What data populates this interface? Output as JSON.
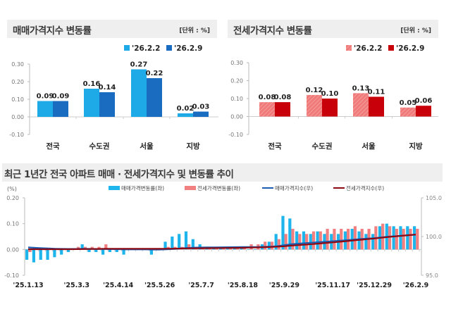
{
  "chart_data": [
    {
      "type": "bar",
      "title": "매매가격지수 변동률",
      "unit": "[단위 : %]",
      "categories": [
        "전국",
        "수도권",
        "서울",
        "지방"
      ],
      "series": [
        {
          "name": "'26.2.2",
          "values": [
            0.09,
            0.16,
            0.27,
            0.02
          ],
          "color": "#1eaae6"
        },
        {
          "name": "'26.2.9",
          "values": [
            0.09,
            0.14,
            0.22,
            0.03
          ],
          "color": "#1a6cc0"
        }
      ],
      "ylim": [
        -0.1,
        0.3
      ],
      "yticks": [
        "0.30",
        "0.20",
        "0.10",
        "0.00",
        "-0.10"
      ],
      "legend": "top-right",
      "data_labels": true
    },
    {
      "type": "bar",
      "title": "전세가격지수 변동률",
      "unit": "[단위 : %]",
      "categories": [
        "전국",
        "수도권",
        "서울",
        "지방"
      ],
      "series": [
        {
          "name": "'26.2.2",
          "values": [
            0.08,
            0.12,
            0.13,
            0.05
          ],
          "color": "#f07a7a",
          "pattern": "hatched"
        },
        {
          "name": "'26.2.9",
          "values": [
            0.08,
            0.1,
            0.11,
            0.06
          ],
          "color": "#c8000a"
        }
      ],
      "ylim": [
        -0.1,
        0.3
      ],
      "yticks": [
        "0.30",
        "0.20",
        "0.10",
        "0.00",
        "-0.10"
      ],
      "legend": "top-right",
      "data_labels": true
    },
    {
      "type": "bar+line",
      "title": "최근 1년간 전국 아파트 매매 · 전세가격지수 및 변동률 추이",
      "ylabel_left": "(%)",
      "ylim_left": [
        -0.1,
        0.2
      ],
      "yticks_left": [
        "0.20",
        "0.10",
        "0.00",
        "-0.10"
      ],
      "ylim_right": [
        95.0,
        105.0
      ],
      "yticks_right": [
        "105.0",
        "100.0",
        "95.0"
      ],
      "x_tick_labels": [
        {
          "index": 0,
          "label": "'25.1.13"
        },
        {
          "index": 7,
          "label": "'25.3.3"
        },
        {
          "index": 13,
          "label": "'25.4.14"
        },
        {
          "index": 19,
          "label": "'25.5.26"
        },
        {
          "index": 25,
          "label": "'25.7.7"
        },
        {
          "index": 31,
          "label": "'25.8.18"
        },
        {
          "index": 37,
          "label": "'25.9.29"
        },
        {
          "index": 44,
          "label": "'25.11.17"
        },
        {
          "index": 50,
          "label": "'25.12.29"
        },
        {
          "index": 56,
          "label": "'26.2.9"
        }
      ],
      "legend": "top",
      "series": [
        {
          "name": "매매가격변동률(좌)",
          "kind": "bar",
          "axis": "left",
          "color": "#1eb4ec",
          "values": [
            -0.04,
            -0.05,
            -0.04,
            -0.04,
            -0.03,
            -0.02,
            -0.01,
            0.0,
            0.02,
            -0.01,
            -0.01,
            -0.02,
            -0.01,
            -0.01,
            -0.02,
            0.0,
            0.0,
            0.0,
            -0.02,
            0.0,
            0.03,
            0.05,
            0.06,
            0.07,
            0.04,
            0.02,
            0.01,
            0.01,
            0.01,
            0.01,
            0.01,
            0.01,
            0.0,
            0.0,
            0.02,
            0.03,
            0.06,
            0.13,
            0.12,
            0.07,
            0.07,
            0.06,
            0.07,
            0.06,
            0.06,
            0.06,
            0.07,
            0.08,
            0.07,
            0.06,
            0.06,
            0.09,
            0.1,
            0.09,
            0.09,
            0.09,
            0.09
          ]
        },
        {
          "name": "전세가격변동률(좌)",
          "kind": "bar",
          "axis": "left",
          "color": "#f28080",
          "values": [
            -0.01,
            0.0,
            0.0,
            0.0,
            0.0,
            0.0,
            0.0,
            0.01,
            0.01,
            0.01,
            0.01,
            0.02,
            0.0,
            0.0,
            0.0,
            0.0,
            0.0,
            0.0,
            0.0,
            0.0,
            0.01,
            0.01,
            0.01,
            0.02,
            0.01,
            0.01,
            0.01,
            0.01,
            0.01,
            0.01,
            0.01,
            0.01,
            0.02,
            0.02,
            0.03,
            0.03,
            0.04,
            0.06,
            0.08,
            0.06,
            0.06,
            0.07,
            0.07,
            0.08,
            0.08,
            0.08,
            0.08,
            0.09,
            0.08,
            0.08,
            0.09,
            0.1,
            0.09,
            0.08,
            0.08,
            0.08,
            0.08
          ]
        },
        {
          "name": "매매가격지수(우)",
          "kind": "line",
          "axis": "right",
          "color": "#1a5cb0",
          "values": [
            98.6,
            98.55,
            98.5,
            98.46,
            98.43,
            98.41,
            98.4,
            98.4,
            98.42,
            98.41,
            98.4,
            98.38,
            98.37,
            98.36,
            98.34,
            98.34,
            98.34,
            98.34,
            98.32,
            98.32,
            98.35,
            98.4,
            98.46,
            98.53,
            98.57,
            98.59,
            98.6,
            98.61,
            98.62,
            98.63,
            98.64,
            98.65,
            98.65,
            98.65,
            98.67,
            98.7,
            98.76,
            98.89,
            99.01,
            99.08,
            99.15,
            99.21,
            99.28,
            99.34,
            99.4,
            99.46,
            99.53,
            99.61,
            99.68,
            99.74,
            99.8,
            99.89,
            99.99,
            100.05,
            100.12,
            100.18,
            100.25
          ]
        },
        {
          "name": "전세가격지수(우)",
          "kind": "line",
          "axis": "right",
          "color": "#8b0a14",
          "values": [
            98.36,
            98.36,
            98.36,
            98.36,
            98.36,
            98.36,
            98.36,
            98.37,
            98.38,
            98.39,
            98.4,
            98.42,
            98.42,
            98.42,
            98.42,
            98.42,
            98.42,
            98.42,
            98.42,
            98.42,
            98.43,
            98.44,
            98.45,
            98.47,
            98.48,
            98.49,
            98.5,
            98.51,
            98.52,
            98.53,
            98.54,
            98.55,
            98.57,
            98.59,
            98.62,
            98.65,
            98.69,
            98.75,
            98.83,
            98.89,
            98.95,
            99.02,
            99.09,
            99.17,
            99.25,
            99.33,
            99.41,
            99.5,
            99.58,
            99.66,
            99.75,
            99.85,
            99.94,
            100.02,
            100.1,
            100.18,
            100.26
          ]
        }
      ]
    }
  ]
}
